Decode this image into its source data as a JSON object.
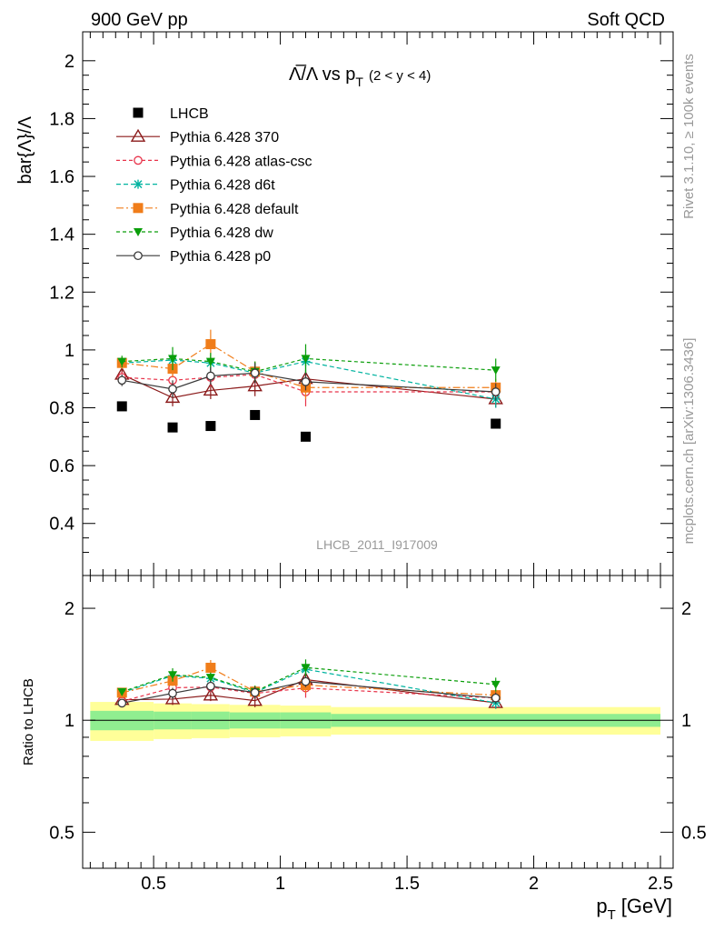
{
  "header": {
    "left": "900 GeV pp",
    "right": "Soft QCD"
  },
  "side_labels": {
    "rivet": "Rivet 3.1.10, ≥ 100k events",
    "mcplots": "mcplots.cern.ch [arXiv:1306.3436]"
  },
  "chart_data": [
    {
      "type": "scatter",
      "panel": "main",
      "title": "Λ̅/Λ vs p",
      "title_sub": "T",
      "title_range": "(2 < y < 4)",
      "ylabel": "bar{Λ}/Λ",
      "xlabel": "p",
      "xlabel_sub": "T",
      "xlabel_unit": "[GeV]",
      "xlim": [
        0.22,
        2.55
      ],
      "ylim": [
        0.22,
        2.1
      ],
      "yticks": [
        0.4,
        0.6,
        0.8,
        1,
        1.2,
        1.4,
        1.6,
        1.8,
        2
      ],
      "ytick_labels": [
        "0.4",
        "0.6",
        "0.8",
        "1",
        "1.2",
        "1.4",
        "1.6",
        "1.8",
        "2"
      ],
      "watermark": "LHCB_2011_I917009",
      "data": {
        "name": "LHCB",
        "color": "#000000",
        "x": [
          0.375,
          0.575,
          0.725,
          0.9,
          1.1,
          1.85
        ],
        "y": [
          0.805,
          0.732,
          0.737,
          0.775,
          0.7,
          0.745
        ]
      },
      "series": [
        {
          "name": "Pythia 6.428 370",
          "color": "#8b1a1a",
          "marker": "triangle-open",
          "dash": "",
          "x": [
            0.375,
            0.575,
            0.725,
            0.9,
            1.1,
            1.85
          ],
          "y": [
            0.915,
            0.835,
            0.86,
            0.875,
            0.9,
            0.83
          ],
          "err": [
            0.02,
            0.03,
            0.03,
            0.035,
            0.03,
            0.03
          ]
        },
        {
          "name": "Pythia 6.428 atlas-csc",
          "color": "#e8334a",
          "marker": "circle-open",
          "dash": "4,3",
          "x": [
            0.375,
            0.575,
            0.725,
            0.9,
            1.1,
            1.85
          ],
          "y": [
            0.905,
            0.895,
            0.905,
            0.915,
            0.855,
            0.855
          ],
          "err": [
            0.02,
            0.03,
            0.03,
            0.035,
            0.05,
            0.03
          ]
        },
        {
          "name": "Pythia 6.428 d6t",
          "color": "#00b3a0",
          "marker": "star",
          "dash": "5,3",
          "x": [
            0.375,
            0.575,
            0.725,
            0.9,
            1.1,
            1.85
          ],
          "y": [
            0.955,
            0.965,
            0.955,
            0.92,
            0.96,
            0.83
          ],
          "err": [
            0.02,
            0.03,
            0.03,
            0.035,
            0.04,
            0.03
          ]
        },
        {
          "name": "Pythia 6.428 default",
          "color": "#f07d1a",
          "marker": "square",
          "dash": "8,3,2,3",
          "x": [
            0.375,
            0.575,
            0.725,
            0.9,
            1.1,
            1.85
          ],
          "y": [
            0.955,
            0.935,
            1.02,
            0.925,
            0.87,
            0.87
          ],
          "err": [
            0.02,
            0.03,
            0.05,
            0.035,
            0.04,
            0.03
          ]
        },
        {
          "name": "Pythia 6.428 dw",
          "color": "#0a9e0a",
          "marker": "triangle-down",
          "dash": "4,3",
          "x": [
            0.375,
            0.575,
            0.725,
            0.9,
            1.1,
            1.85
          ],
          "y": [
            0.96,
            0.97,
            0.96,
            0.925,
            0.97,
            0.93
          ],
          "err": [
            0.02,
            0.04,
            0.03,
            0.035,
            0.05,
            0.04
          ]
        },
        {
          "name": "Pythia 6.428 p0",
          "color": "#3a3a3a",
          "marker": "circle-open",
          "dash": "",
          "x": [
            0.375,
            0.575,
            0.725,
            0.9,
            1.1,
            1.85
          ],
          "y": [
            0.895,
            0.865,
            0.91,
            0.92,
            0.89,
            0.855
          ],
          "err": [
            0.02,
            0.03,
            0.03,
            0.035,
            0.03,
            0.03
          ]
        }
      ]
    },
    {
      "type": "scatter",
      "panel": "ratio",
      "ylabel": "Ratio to LHCB",
      "scale": "log",
      "xlim": [
        0.22,
        2.55
      ],
      "ylim": [
        0.4,
        2.45
      ],
      "yticks": [
        0.5,
        1,
        2
      ],
      "ytick_labels": [
        "0.5",
        "1",
        "2"
      ],
      "xticks": [
        0.5,
        1,
        1.5,
        2,
        2.5
      ],
      "xtick_labels": [
        "0.5",
        "1",
        "1.5",
        "2",
        "2.5"
      ],
      "band_bins": [
        {
          "lo": 0.25,
          "hi": 0.5,
          "inner": 0.06,
          "outer": 0.12
        },
        {
          "lo": 0.5,
          "hi": 0.65,
          "inner": 0.055,
          "outer": 0.11
        },
        {
          "lo": 0.65,
          "hi": 0.8,
          "inner": 0.055,
          "outer": 0.105
        },
        {
          "lo": 0.8,
          "hi": 1.0,
          "inner": 0.05,
          "outer": 0.1
        },
        {
          "lo": 1.0,
          "hi": 1.2,
          "inner": 0.05,
          "outer": 0.095
        },
        {
          "lo": 1.2,
          "hi": 2.5,
          "inner": 0.04,
          "outer": 0.085
        }
      ],
      "band_colors": {
        "inner": "#90ee90",
        "outer": "#ffff99"
      },
      "series": [
        {
          "name": "Pythia 6.428 370",
          "y": [
            1.135,
            1.14,
            1.167,
            1.129,
            1.286,
            1.114
          ]
        },
        {
          "name": "Pythia 6.428 atlas-csc",
          "y": [
            1.124,
            1.223,
            1.228,
            1.181,
            1.221,
            1.148
          ]
        },
        {
          "name": "Pythia 6.428 d6t",
          "y": [
            1.186,
            1.318,
            1.296,
            1.187,
            1.371,
            1.114
          ]
        },
        {
          "name": "Pythia 6.428 default",
          "y": [
            1.186,
            1.277,
            1.384,
            1.194,
            1.243,
            1.168
          ]
        },
        {
          "name": "Pythia 6.428 dw",
          "y": [
            1.193,
            1.325,
            1.303,
            1.194,
            1.386,
            1.248
          ]
        },
        {
          "name": "Pythia 6.428 p0",
          "y": [
            1.112,
            1.182,
            1.235,
            1.187,
            1.271,
            1.148
          ]
        }
      ]
    }
  ]
}
